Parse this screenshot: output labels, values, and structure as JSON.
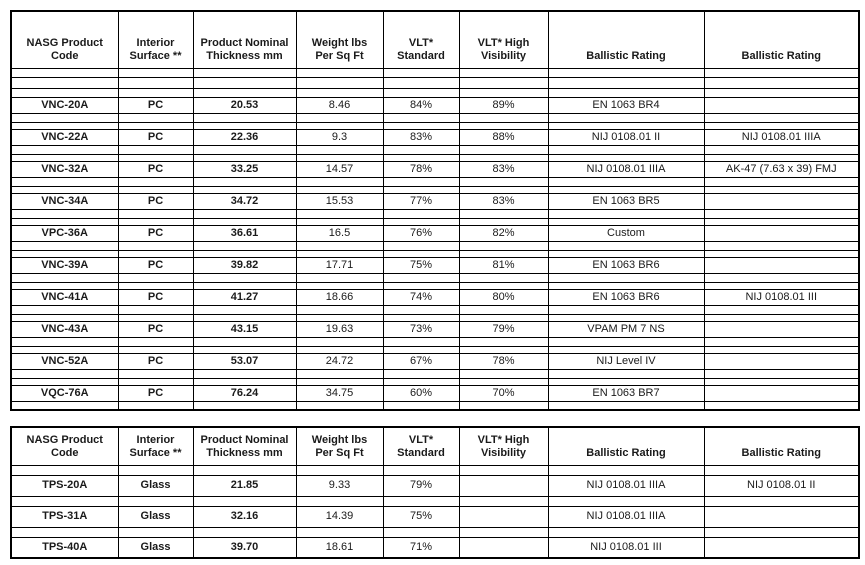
{
  "page": {
    "background": "#ffffff",
    "border_color": "#000000",
    "text_color": "#1a1a1a"
  },
  "headers": [
    {
      "line1": "NASG Product",
      "line2": "Code"
    },
    {
      "line1": "Interior",
      "line2": "Surface **"
    },
    {
      "line1": "Product Nominal",
      "line2": "Thickness mm"
    },
    {
      "line1": "Weight lbs",
      "line2": "Per Sq Ft"
    },
    {
      "line1": "VLT*",
      "line2": "Standard"
    },
    {
      "line1": "VLT* High",
      "line2": "Visibility"
    },
    {
      "line1": "Ballistic Rating",
      "line2": ""
    },
    {
      "line1": "Ballistic Rating",
      "line2": ""
    }
  ],
  "tables": {
    "pc": {
      "rows": [
        [
          "VNC-20A",
          "PC",
          "20.53",
          "8.46",
          "84%",
          "89%",
          "EN 1063 BR4",
          ""
        ],
        [
          "VNC-22A",
          "PC",
          "22.36",
          "9.3",
          "83%",
          "88%",
          "NIJ 0108.01 II",
          "NIJ 0108.01 IIIA"
        ],
        [
          "VNC-32A",
          "PC",
          "33.25",
          "14.57",
          "78%",
          "83%",
          "NIJ 0108.01 IIIA",
          "AK-47 (7.63 x 39) FMJ"
        ],
        [
          "VNC-34A",
          "PC",
          "34.72",
          "15.53",
          "77%",
          "83%",
          "EN 1063 BR5",
          ""
        ],
        [
          "VPC-36A",
          "PC",
          "36.61",
          "16.5",
          "76%",
          "82%",
          "Custom",
          ""
        ],
        [
          "VNC-39A",
          "PC",
          "39.82",
          "17.71",
          "75%",
          "81%",
          "EN 1063 BR6",
          ""
        ],
        [
          "VNC-41A",
          "PC",
          "41.27",
          "18.66",
          "74%",
          "80%",
          "EN 1063 BR6",
          "NIJ 0108.01 III"
        ],
        [
          "VNC-43A",
          "PC",
          "43.15",
          "19.63",
          "73%",
          "79%",
          "VPAM PM 7 NS",
          ""
        ],
        [
          "VNC-52A",
          "PC",
          "53.07",
          "24.72",
          "67%",
          "78%",
          "NIJ Level IV",
          ""
        ],
        [
          "VQC-76A",
          "PC",
          "76.24",
          "34.75",
          "60%",
          "70%",
          "EN 1063 BR7",
          ""
        ]
      ]
    },
    "glass": {
      "rows": [
        [
          "TPS-20A",
          "Glass",
          "21.85",
          "9.33",
          "79%",
          "",
          "NIJ 0108.01 IIIA",
          "NIJ 0108.01 II"
        ],
        [
          "TPS-31A",
          "Glass",
          "32.16",
          "14.39",
          "75%",
          "",
          "NIJ 0108.01 IIIA",
          ""
        ],
        [
          "TPS-40A",
          "Glass",
          "39.70",
          "18.61",
          "71%",
          "",
          "NIJ 0108.01 III",
          ""
        ]
      ]
    }
  }
}
